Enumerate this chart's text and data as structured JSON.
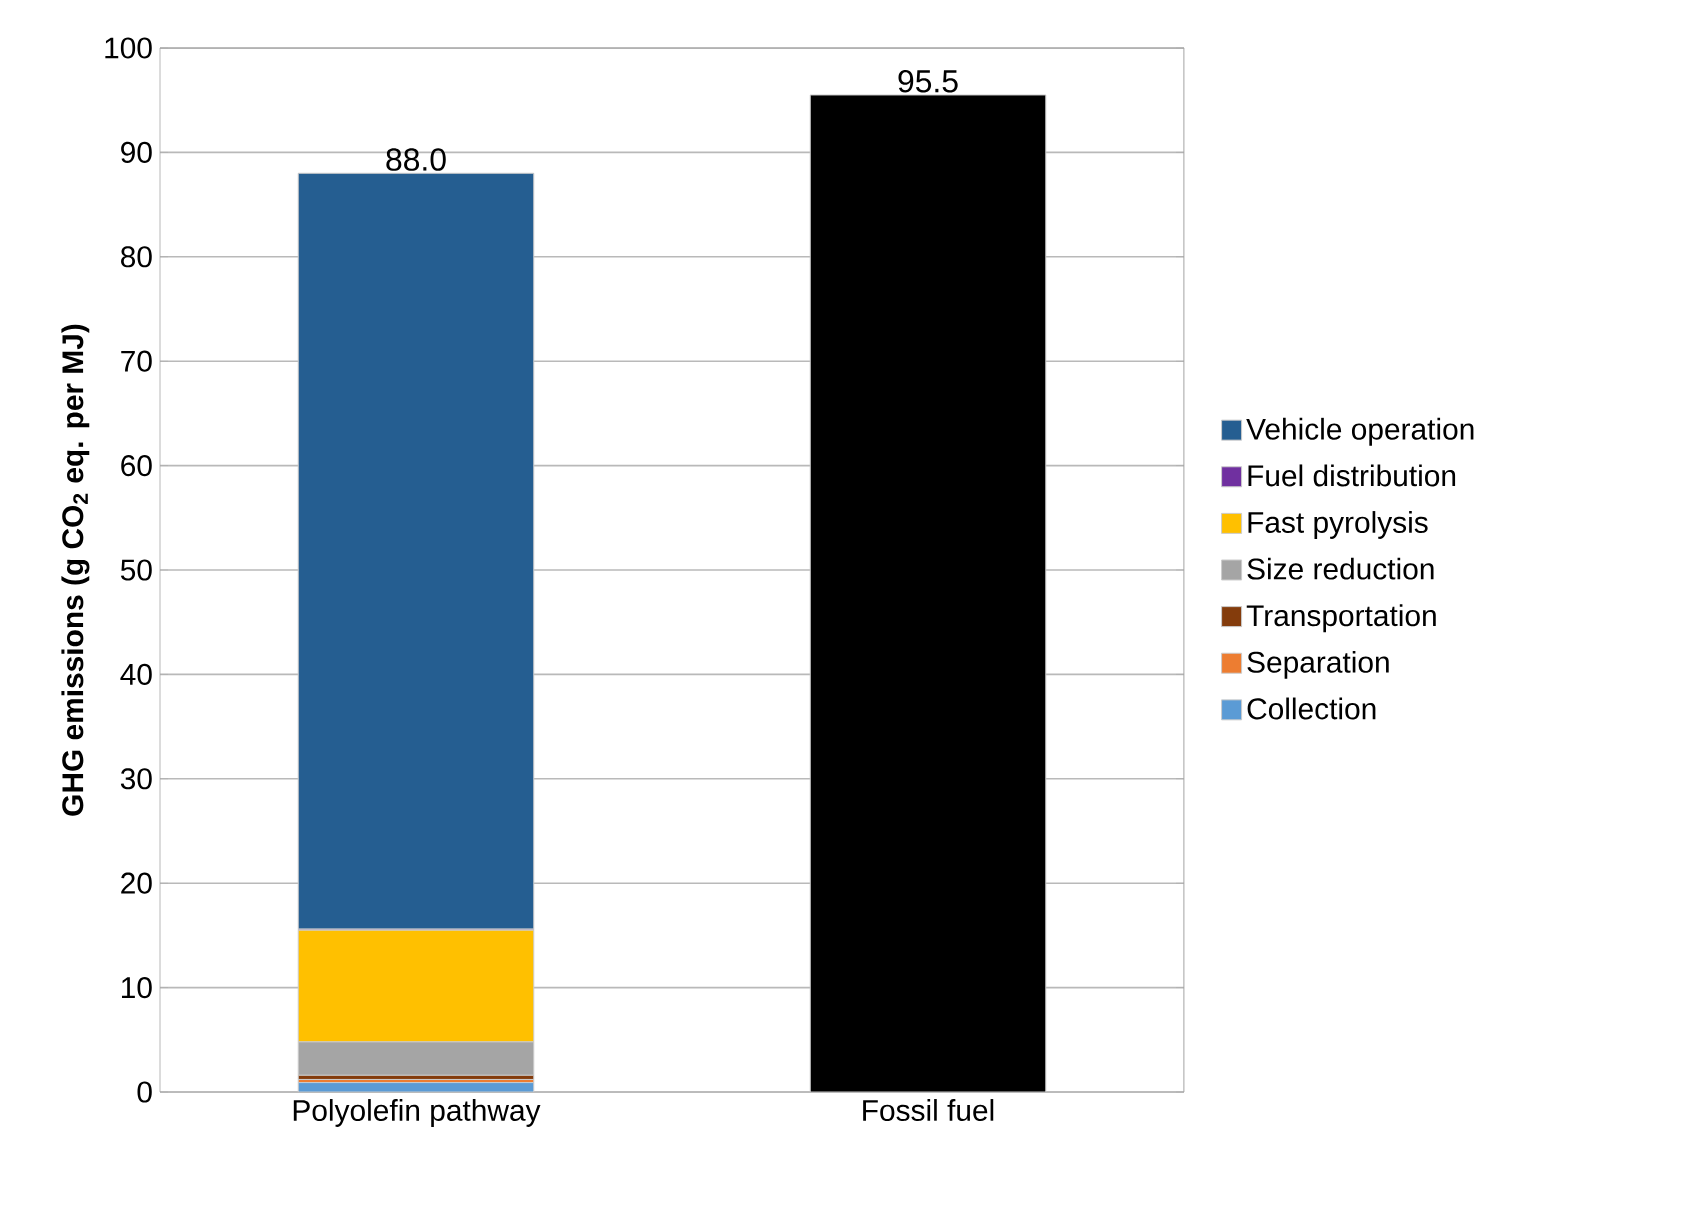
{
  "chart_data": {
    "type": "bar",
    "stacked": true,
    "ylabel": "GHG emissions (g CO$_{2}$ eq. per MJ)",
    "categories": [
      "Polyolefin pathway",
      "Fossil fuel"
    ],
    "series": [
      {
        "name": "Collection",
        "color": "#5b9bd5",
        "values": [
          0.9,
          null
        ]
      },
      {
        "name": "Separation",
        "color": "#ed7d31",
        "values": [
          0.3,
          null
        ]
      },
      {
        "name": "Transportation",
        "color": "#843c0c",
        "values": [
          0.4,
          null
        ]
      },
      {
        "name": "Size reduction",
        "color": "#a5a5a5",
        "values": [
          3.2,
          null
        ]
      },
      {
        "name": "Fast pyrolysis",
        "color": "#ffc000",
        "values": [
          10.7,
          null
        ]
      },
      {
        "name": "Fuel distribution",
        "color": "#7030a0",
        "values": [
          0.1,
          null
        ]
      },
      {
        "name": "Vehicle operation",
        "color": "#255e91",
        "values": [
          72.4,
          null
        ]
      },
      {
        "color": "#000000",
        "values": [
          null,
          95.5
        ]
      }
    ],
    "totals": [
      "88.0",
      "95.5"
    ],
    "ylim": [
      0,
      100
    ],
    "yticks": [
      0,
      10,
      20,
      30,
      40,
      50,
      60,
      70,
      80,
      90,
      100
    ],
    "grid": "y",
    "legend": "right"
  }
}
